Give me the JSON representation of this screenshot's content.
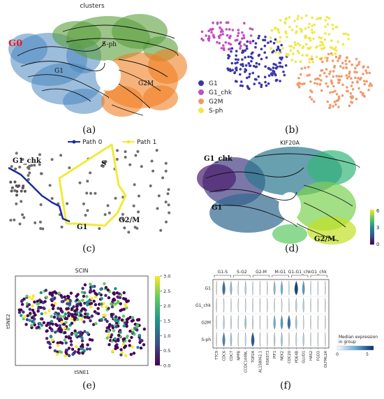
{
  "figure": {
    "panel_labels": [
      "(a)",
      "(b)",
      "(c)",
      "(d)",
      "(e)",
      "(f)"
    ]
  },
  "panel_a": {
    "title": "clusters",
    "labels": {
      "g0": "G0",
      "g1": "G1",
      "sph": "S-ph",
      "g2m": "G2M"
    },
    "colors": {
      "g0": "#e41a1c",
      "blue": "#4a86bf",
      "green": "#5a9e3a",
      "orange": "#f07f23"
    }
  },
  "panel_b": {
    "legend": [
      {
        "label": "G1",
        "color": "#3a36a8"
      },
      {
        "label": "G1_chk",
        "color": "#c24fc0"
      },
      {
        "label": "G2M",
        "color": "#f29a6c"
      },
      {
        "label": "S-ph",
        "color": "#f0e84a"
      }
    ]
  },
  "panel_c": {
    "legend": [
      {
        "label": "Path 0",
        "color": "#1a2aa0"
      },
      {
        "label": "Path 1",
        "color": "#f2ea3a"
      }
    ],
    "labels": {
      "g1chk": "G1_chk",
      "s": "S",
      "g1": "G1",
      "g2m": "G2/M"
    }
  },
  "panel_d": {
    "title": "KIF20A",
    "labels": {
      "g1chk": "G1_chk",
      "g1": "G1",
      "g2m": "G2/M"
    },
    "colorbar_ticks": [
      "6",
      "3",
      "0"
    ]
  },
  "panel_e": {
    "title": "SCIN",
    "xlabel": "tSNE1",
    "ylabel": "tSNE2",
    "colorbar_ticks": [
      "3.0",
      "2.5",
      "2.0",
      "1.5",
      "1.0",
      "0.5",
      "0.0"
    ]
  },
  "panel_f": {
    "groups": [
      "G1-S",
      "S-G2",
      "G2-M",
      "M-G1",
      "G1-G1_chk",
      "G1_chk"
    ],
    "rows": [
      "G1",
      "G1_chk",
      "G2M",
      "S-ph"
    ],
    "genes": [
      "TTC9",
      "CDC6",
      "CDC7",
      "NPPB",
      "CCDC144NL",
      "TOP2A",
      "AL158062.1",
      "HS6ST3",
      "PIF1",
      "NEK2",
      "CDC20",
      "PDE4B",
      "GLUD1",
      "HAS2",
      "FGD3",
      "OLFML2A"
    ],
    "legend_title": "Median expression\nin group",
    "legend_title_l1": "Median expression",
    "legend_title_l2": "in group",
    "legend_ticks": [
      "0",
      "5"
    ]
  },
  "chart_data": [
    {
      "type": "heatmap",
      "title": "",
      "description_source": "panel f stacked violin; rows are groups, columns are genes; values are median expression (0-6)",
      "rows": [
        "G1",
        "G1_chk",
        "G2M",
        "S-ph"
      ],
      "columns": [
        "TTC9",
        "CDC6",
        "CDC7",
        "NPPB",
        "CCDC144NL",
        "TOP2A",
        "AL158062.1",
        "HS6ST3",
        "PIF1",
        "NEK2",
        "CDC20",
        "PDE4B",
        "GLUD1",
        "HAS2",
        "FGD3",
        "OLFML2A"
      ],
      "values": [
        [
          0.5,
          4.5,
          2.5,
          0.5,
          1.5,
          0.5,
          0.5,
          0.5,
          2.5,
          3.0,
          0.5,
          5.5,
          3.5,
          0.5,
          0.5,
          0.5
        ],
        [
          0.5,
          0.5,
          0.5,
          0.5,
          0.5,
          0.5,
          0.5,
          0.5,
          0.5,
          0.5,
          0.5,
          1.5,
          1.5,
          0.5,
          0.5,
          0.5
        ],
        [
          0.5,
          1.5,
          1.0,
          0.5,
          2.0,
          1.0,
          0.5,
          0.5,
          3.0,
          3.5,
          4.5,
          2.0,
          0.5,
          0.5,
          0.5,
          0.5
        ],
        [
          0.5,
          4.0,
          2.0,
          0.5,
          1.0,
          5.0,
          0.5,
          0.5,
          1.5,
          2.0,
          0.5,
          1.0,
          1.5,
          0.5,
          0.5,
          0.5
        ]
      ],
      "legend_range": [
        0,
        6
      ]
    }
  ]
}
